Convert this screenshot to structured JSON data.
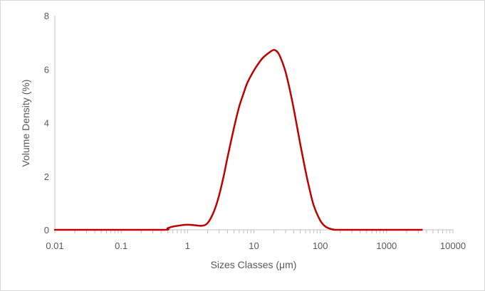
{
  "chart_data": {
    "type": "line",
    "title": "",
    "xlabel": "Sizes Classes (μm)",
    "ylabel": "Volume Density (%)",
    "x_scale": "log",
    "xlim": [
      0.01,
      10000
    ],
    "ylim": [
      0,
      8
    ],
    "x_ticks": [
      "0.01",
      "0.1",
      "1",
      "10",
      "100",
      "1000",
      "10000"
    ],
    "y_ticks": [
      "0",
      "2",
      "4",
      "6",
      "8"
    ],
    "grid": false,
    "legend": "none",
    "line_color": "#c00000",
    "series": [
      {
        "x": [
          0.01,
          0.1,
          0.45,
          0.5,
          0.6,
          0.8,
          1.0,
          1.3,
          1.6,
          1.9,
          2.2,
          2.6,
          3.0,
          3.5,
          4.0,
          5.0,
          6.0,
          7.0,
          8.0,
          10.0,
          12.0,
          14.0,
          17.0,
          20.0,
          23.0,
          26.0,
          30.0,
          35.0,
          40.0,
          50.0,
          60.0,
          70.0,
          80.0,
          100.0,
          120.0,
          150.0,
          170.0,
          200.0,
          1000.0,
          3400.0
        ],
        "y": [
          0,
          0,
          0,
          0.06,
          0.12,
          0.17,
          0.19,
          0.17,
          0.15,
          0.2,
          0.4,
          0.8,
          1.3,
          2.0,
          2.7,
          3.8,
          4.6,
          5.1,
          5.5,
          5.95,
          6.25,
          6.45,
          6.62,
          6.72,
          6.62,
          6.35,
          5.9,
          5.2,
          4.5,
          3.2,
          2.2,
          1.45,
          0.9,
          0.35,
          0.12,
          0.02,
          0,
          0,
          0,
          0
        ]
      }
    ]
  }
}
